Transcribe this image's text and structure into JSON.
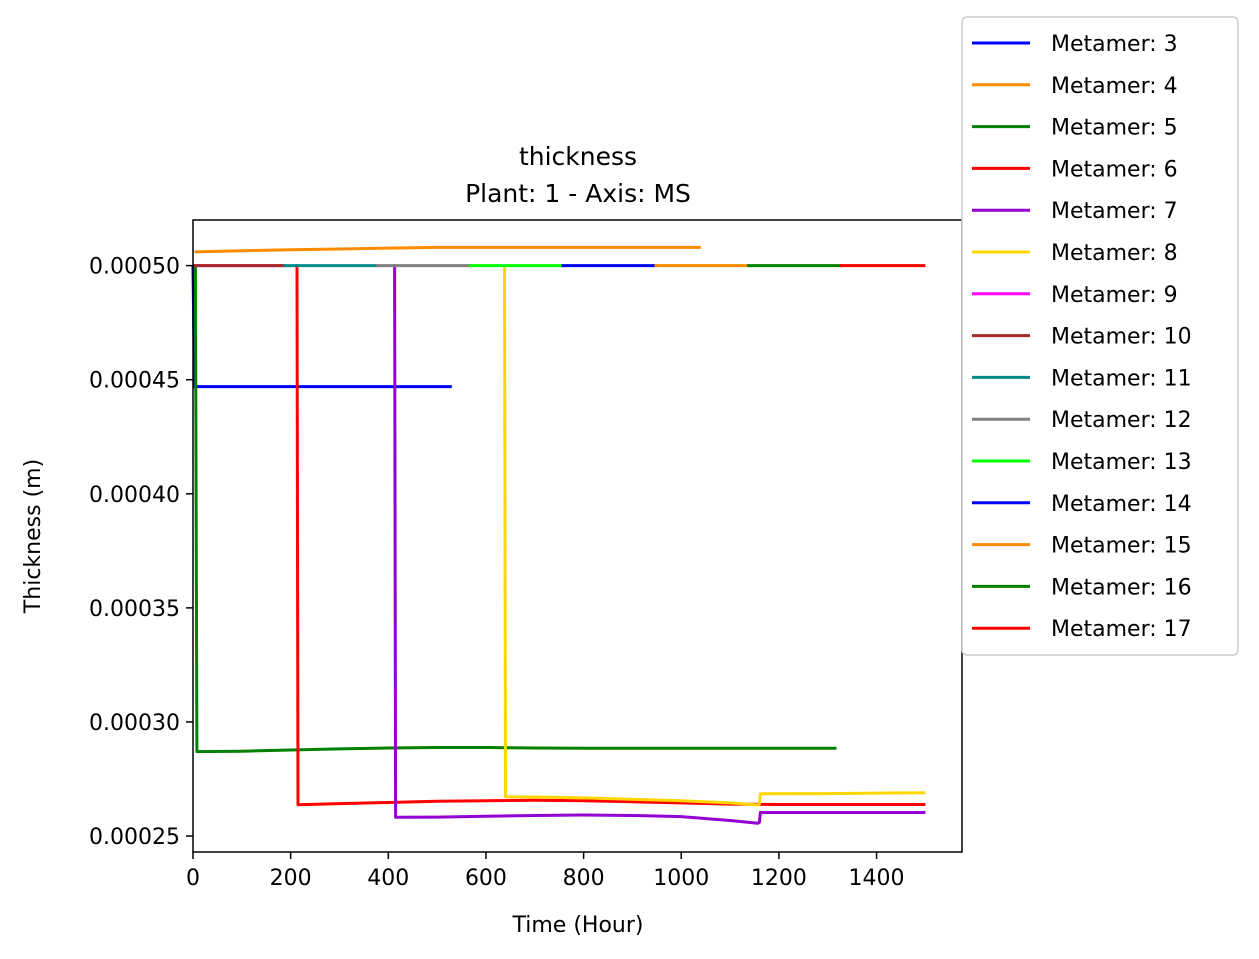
{
  "chart_data": {
    "type": "line",
    "title": "thickness",
    "subtitle": "Plant: 1 - Axis: MS",
    "xlabel": "Time (Hour)",
    "ylabel": "Thickness (m)",
    "xlim": [
      0,
      1575
    ],
    "ylim": [
      0.000243,
      0.00052
    ],
    "xticks": [
      0,
      200,
      400,
      600,
      800,
      1000,
      1200,
      1400
    ],
    "xtick_labels": [
      "0",
      "200",
      "400",
      "600",
      "800",
      "1000",
      "1200",
      "1400"
    ],
    "yticks": [
      0.00025,
      0.0003,
      0.00035,
      0.0004,
      0.00045,
      0.0005
    ],
    "ytick_labels": [
      "0.00025",
      "0.00030",
      "0.00035",
      "0.00040",
      "0.00045",
      "0.00050"
    ],
    "grid": false,
    "legend_position": "outside-right",
    "series": [
      {
        "name": "Metamer: 3",
        "color": "#0000ff",
        "points": [
          [
            0,
            0.0005
          ],
          [
            3,
            0.000447
          ],
          [
            50,
            0.000447
          ],
          [
            100,
            0.000447
          ],
          [
            200,
            0.000447
          ],
          [
            300,
            0.000447
          ],
          [
            400,
            0.000447
          ],
          [
            530,
            0.000447
          ]
        ]
      },
      {
        "name": "Metamer: 4",
        "color": "#ff8c00",
        "points": [
          [
            3,
            0.000506
          ],
          [
            100,
            0.0005065
          ],
          [
            200,
            0.000507
          ],
          [
            300,
            0.0005073
          ],
          [
            400,
            0.0005077
          ],
          [
            500,
            0.000508
          ],
          [
            700,
            0.000508
          ],
          [
            900,
            0.000508
          ],
          [
            1040,
            0.000508
          ]
        ]
      },
      {
        "name": "Metamer: 5",
        "color": "#008000",
        "points": [
          [
            0,
            0.0005
          ],
          [
            5,
            0.0005
          ],
          [
            8,
            0.000287
          ],
          [
            100,
            0.0002872
          ],
          [
            200,
            0.0002877
          ],
          [
            300,
            0.0002882
          ],
          [
            400,
            0.0002886
          ],
          [
            500,
            0.0002888
          ],
          [
            600,
            0.0002888
          ],
          [
            700,
            0.0002886
          ],
          [
            800,
            0.0002885
          ],
          [
            1000,
            0.0002885
          ],
          [
            1200,
            0.0002885
          ],
          [
            1318,
            0.0002885
          ]
        ]
      },
      {
        "name": "Metamer: 6",
        "color": "#ff0000",
        "points": [
          [
            210,
            0.0005
          ],
          [
            213,
            0.0005
          ],
          [
            215,
            0.0002637
          ],
          [
            300,
            0.0002642
          ],
          [
            400,
            0.0002647
          ],
          [
            500,
            0.0002652
          ],
          [
            600,
            0.0002655
          ],
          [
            700,
            0.0002657
          ],
          [
            800,
            0.0002655
          ],
          [
            900,
            0.000265
          ],
          [
            1000,
            0.0002645
          ],
          [
            1100,
            0.000264
          ],
          [
            1200,
            0.0002638
          ],
          [
            1300,
            0.0002638
          ],
          [
            1500,
            0.0002638
          ]
        ]
      },
      {
        "name": "Metamer: 7",
        "color": "#9400d3",
        "points": [
          [
            410,
            0.0005
          ],
          [
            413,
            0.0005
          ],
          [
            415,
            0.0002582
          ],
          [
            500,
            0.0002583
          ],
          [
            600,
            0.0002587
          ],
          [
            700,
            0.000259
          ],
          [
            800,
            0.0002592
          ],
          [
            900,
            0.000259
          ],
          [
            1000,
            0.0002585
          ],
          [
            1100,
            0.0002568
          ],
          [
            1157,
            0.0002556
          ],
          [
            1160,
            0.000256
          ],
          [
            1162,
            0.0002603
          ],
          [
            1300,
            0.0002603
          ],
          [
            1500,
            0.0002603
          ]
        ]
      },
      {
        "name": "Metamer: 8",
        "color": "#ffd700",
        "points": [
          [
            636,
            0.0005
          ],
          [
            638,
            0.0005
          ],
          [
            640,
            0.0002672
          ],
          [
            700,
            0.0002671
          ],
          [
            800,
            0.0002667
          ],
          [
            900,
            0.0002661
          ],
          [
            1000,
            0.0002655
          ],
          [
            1100,
            0.0002645
          ],
          [
            1157,
            0.0002636
          ],
          [
            1160,
            0.000264
          ],
          [
            1162,
            0.0002685
          ],
          [
            1300,
            0.0002686
          ],
          [
            1400,
            0.0002688
          ],
          [
            1500,
            0.000269
          ]
        ]
      },
      {
        "name": "Metamer: 9",
        "color": "#ff00ff",
        "points": [
          [
            0,
            0.0005
          ],
          [
            190,
            0.0005
          ]
        ]
      },
      {
        "name": "Metamer: 10",
        "color": "#a52a2a",
        "points": [
          [
            0,
            0.0005
          ],
          [
            190,
            0.0005
          ]
        ]
      },
      {
        "name": "Metamer: 11",
        "color": "#008b8b",
        "points": [
          [
            185,
            0.0005
          ],
          [
            380,
            0.0005
          ]
        ]
      },
      {
        "name": "Metamer: 12",
        "color": "#808080",
        "points": [
          [
            375,
            0.0005
          ],
          [
            570,
            0.0005
          ]
        ]
      },
      {
        "name": "Metamer: 13",
        "color": "#00ff00",
        "points": [
          [
            565,
            0.0005
          ],
          [
            760,
            0.0005
          ]
        ]
      },
      {
        "name": "Metamer: 14",
        "color": "#0000ff",
        "points": [
          [
            755,
            0.0005
          ],
          [
            950,
            0.0005
          ]
        ]
      },
      {
        "name": "Metamer: 15",
        "color": "#ff8c00",
        "points": [
          [
            945,
            0.0005
          ],
          [
            1140,
            0.0005
          ]
        ]
      },
      {
        "name": "Metamer: 16",
        "color": "#008000",
        "points": [
          [
            1135,
            0.0005
          ],
          [
            1330,
            0.0005
          ]
        ]
      },
      {
        "name": "Metamer: 17",
        "color": "#ff0000",
        "points": [
          [
            1325,
            0.0005
          ],
          [
            1500,
            0.0005
          ]
        ]
      }
    ]
  }
}
